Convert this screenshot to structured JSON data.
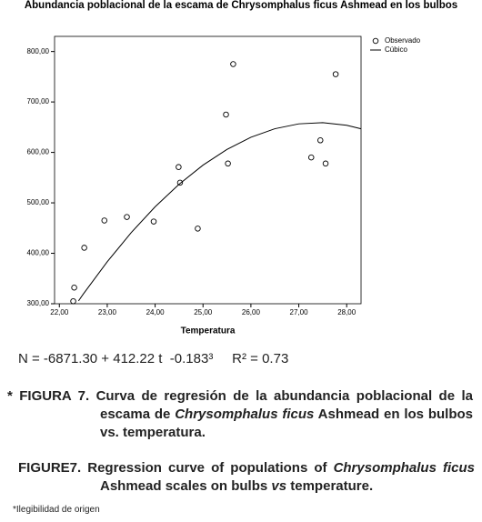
{
  "chart_data": {
    "type": "scatter",
    "title": "Abundancia poblacional de la escama de  Chrysomphalus ficus Ashmead en los bulbos",
    "xlabel": "Temperatura",
    "xlim": [
      21.9,
      28.3
    ],
    "xticks": [
      {
        "value": 22,
        "label": "22,00"
      },
      {
        "value": 23,
        "label": "23,00"
      },
      {
        "value": 24,
        "label": "24,00"
      },
      {
        "value": 25,
        "label": "25,00"
      },
      {
        "value": 26,
        "label": "26,00"
      },
      {
        "value": 27,
        "label": "27,00"
      },
      {
        "value": 28,
        "label": "28,00"
      }
    ],
    "ylim": [
      300,
      830
    ],
    "yticks": [
      {
        "value": 300,
        "label": "300,00"
      },
      {
        "value": 400,
        "label": "400,00"
      },
      {
        "value": 500,
        "label": "500,00"
      },
      {
        "value": 600,
        "label": "600,00"
      },
      {
        "value": 700,
        "label": "700,00"
      },
      {
        "value": 800,
        "label": "800,00"
      }
    ],
    "legend": "top-right",
    "series": [
      {
        "name": "Observado",
        "color": "#000000",
        "style": "marker",
        "x": [
          22.31,
          22.29,
          22.52,
          22.94,
          23.41,
          23.97,
          24.49,
          24.52,
          24.89,
          25.48,
          25.52,
          25.63,
          27.26,
          27.45,
          27.56,
          27.77
        ],
        "values": [
          332,
          305,
          411,
          465,
          472,
          463,
          571,
          540,
          449,
          675,
          578,
          775,
          590,
          624,
          578,
          755
        ]
      },
      {
        "name": "Cúbico",
        "color": "#000000",
        "style": "line",
        "x": [
          22.4,
          22.5,
          23,
          23.5,
          24,
          24.5,
          25,
          25.5,
          26,
          26.5,
          27,
          27.5,
          28,
          28.3
        ],
        "values": [
          305.6,
          319.2,
          383.2,
          441.0,
          492.2,
          536.9,
          574.8,
          605.9,
          630.0,
          646.9,
          656.6,
          659.0,
          653.7,
          646.8
        ]
      }
    ]
  },
  "equation": "N = -6871.30 + 412.22 t  -0.183³",
  "r_squared": "R² = 0.73",
  "caption_es": {
    "marker": "*",
    "label": "FIGURA 7.",
    "parts": [
      {
        "text": "Curva de regresión de la abundancia poblacional de la escama de ",
        "italic": false
      },
      {
        "text": "Chrysomphalus ficus",
        "italic": true
      },
      {
        "text": " Ashmead en los bulbos vs. temperatura.",
        "italic": false
      }
    ]
  },
  "caption_en": {
    "label": "FIGURE7.",
    "parts": [
      {
        "text": "Regression curve of populations of ",
        "italic": false
      },
      {
        "text": "Chrysomphalus ficus",
        "italic": true
      },
      {
        "text": " Ashmead scales on bulbs ",
        "italic": false
      },
      {
        "text": "vs",
        "italic": true
      },
      {
        "text": " temperature.",
        "italic": false
      }
    ]
  },
  "footnote": "*Ilegibilidad de origen"
}
